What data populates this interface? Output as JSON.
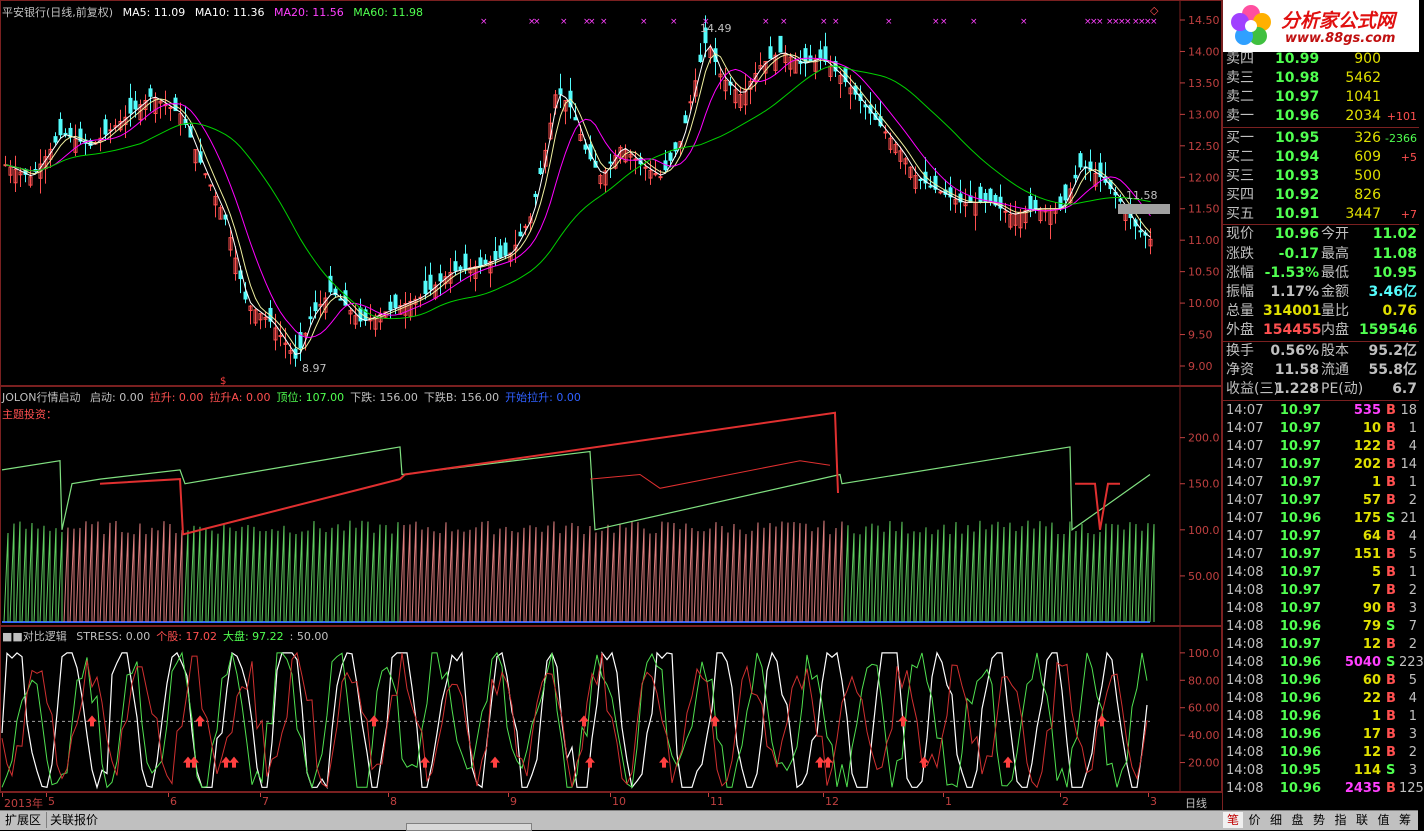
{
  "price_pane": {
    "title": "平安银行(日线,前复权)",
    "ma5": "MA5: 11.09",
    "ma10": "MA10: 11.36",
    "ma20": "MA20: 11.56",
    "ma60": "MA60: 11.98",
    "high_label": "14.49",
    "low_label": "8.97",
    "cursor_label": "11.58",
    "yticks": [
      "14.50",
      "14.00",
      "13.50",
      "13.00",
      "12.50",
      "12.00",
      "11.50",
      "11.00",
      "10.50",
      "10.00",
      "9.50",
      "9.00"
    ],
    "colors": {
      "up": "#ff5050",
      "down": "#54fcfc",
      "ma5": "#ffffff",
      "ma10": "#ffff00",
      "ma20": "#ff00ff",
      "ma60": "#00e000"
    }
  },
  "indicator1": {
    "name": "JOLON行情启动",
    "subtitle": "主题投资：",
    "items": [
      {
        "label": "启动: 0.00",
        "color": "#c0c0c0"
      },
      {
        "label": "拉升: 0.00",
        "color": "#ff5050"
      },
      {
        "label": "拉升A: 0.00",
        "color": "#ff5050"
      },
      {
        "label": "顶位: 107.00",
        "color": "#50ff50"
      },
      {
        "label": "下跌: 156.00",
        "color": "#c0c0c0"
      },
      {
        "label": "下跌B: 156.00",
        "color": "#c0c0c0"
      },
      {
        "label": "开始拉升: 0.00",
        "color": "#3060ff"
      }
    ],
    "yticks": [
      "200.0",
      "150.0",
      "100.0",
      "50.00"
    ]
  },
  "indicator2": {
    "name": "■■对比逻辑",
    "items": [
      {
        "label": "STRESS: 0.00",
        "color": "#c0c0c0"
      },
      {
        "label": "个股: 17.02",
        "color": "#ff5050"
      },
      {
        "label": "大盘: 97.22",
        "color": "#50ff50"
      },
      {
        "label": ": 50.00",
        "color": "#c0c0c0"
      }
    ],
    "yticks": [
      "100.0",
      "80.00",
      "60.00",
      "40.00",
      "20.00"
    ]
  },
  "date_axis": {
    "labels": [
      "2013年",
      "5",
      "6",
      "7",
      "8",
      "9",
      "10",
      "11",
      "12",
      "1",
      "2",
      "3"
    ],
    "period": "日线"
  },
  "order_book": {
    "sells": [
      {
        "label": "卖四",
        "price": "10.99",
        "vol": "900",
        "chg": ""
      },
      {
        "label": "卖三",
        "price": "10.98",
        "vol": "5462",
        "chg": ""
      },
      {
        "label": "卖二",
        "price": "10.97",
        "vol": "1041",
        "chg": ""
      },
      {
        "label": "卖一",
        "price": "10.96",
        "vol": "2034",
        "chg": "+101"
      }
    ],
    "buys": [
      {
        "label": "买一",
        "price": "10.95",
        "vol": "326",
        "chg": "-2366"
      },
      {
        "label": "买二",
        "price": "10.94",
        "vol": "609",
        "chg": "+5"
      },
      {
        "label": "买三",
        "price": "10.93",
        "vol": "500",
        "chg": ""
      },
      {
        "label": "买四",
        "price": "10.92",
        "vol": "826",
        "chg": ""
      },
      {
        "label": "买五",
        "price": "10.91",
        "vol": "3447",
        "chg": "+7"
      }
    ]
  },
  "stats": [
    {
      "l1": "现价",
      "v1": "10.96",
      "c1": "#50ff50",
      "l2": "今开",
      "v2": "11.02",
      "c2": "#50ff50"
    },
    {
      "l1": "涨跌",
      "v1": "-0.17",
      "c1": "#50ff50",
      "l2": "最高",
      "v2": "11.08",
      "c2": "#50ff50"
    },
    {
      "l1": "涨幅",
      "v1": "-1.53%",
      "c1": "#50ff50",
      "l2": "最低",
      "v2": "10.95",
      "c2": "#50ff50"
    },
    {
      "l1": "振幅",
      "v1": "1.17%",
      "c1": "#c0c0c0",
      "l2": "金额",
      "v2": "3.46亿",
      "c2": "#54fcfc"
    },
    {
      "l1": "总量",
      "v1": "314001",
      "c1": "#e0e000",
      "l2": "量比",
      "v2": "0.76",
      "c2": "#e0e000"
    },
    {
      "l1": "外盘",
      "v1": "154455",
      "c1": "#ff5050",
      "l2": "内盘",
      "v2": "159546",
      "c2": "#50ff50"
    },
    {
      "l1": "换手",
      "v1": "0.56%",
      "c1": "#c0c0c0",
      "l2": "股本",
      "v2": "95.2亿",
      "c2": "#c0c0c0"
    },
    {
      "l1": "净资",
      "v1": "11.58",
      "c1": "#c0c0c0",
      "l2": "流通",
      "v2": "55.8亿",
      "c2": "#c0c0c0"
    },
    {
      "l1": "收益(三)",
      "v1": "1.228",
      "c1": "#c0c0c0",
      "l2": "PE(动)",
      "v2": "6.7",
      "c2": "#c0c0c0"
    }
  ],
  "ticks": [
    {
      "t": "14:07",
      "p": "10.97",
      "v": "535",
      "vc": "#ff40ff",
      "s": "B",
      "n": "18"
    },
    {
      "t": "14:07",
      "p": "10.97",
      "v": "10",
      "vc": "#e0e000",
      "s": "B",
      "n": "1"
    },
    {
      "t": "14:07",
      "p": "10.97",
      "v": "122",
      "vc": "#e0e000",
      "s": "B",
      "n": "4"
    },
    {
      "t": "14:07",
      "p": "10.97",
      "v": "202",
      "vc": "#e0e000",
      "s": "B",
      "n": "14"
    },
    {
      "t": "14:07",
      "p": "10.97",
      "v": "1",
      "vc": "#e0e000",
      "s": "B",
      "n": "1"
    },
    {
      "t": "14:07",
      "p": "10.97",
      "v": "57",
      "vc": "#e0e000",
      "s": "B",
      "n": "2"
    },
    {
      "t": "14:07",
      "p": "10.96",
      "v": "175",
      "vc": "#e0e000",
      "s": "S",
      "n": "21"
    },
    {
      "t": "14:07",
      "p": "10.97",
      "v": "64",
      "vc": "#e0e000",
      "s": "B",
      "n": "4"
    },
    {
      "t": "14:07",
      "p": "10.97",
      "v": "151",
      "vc": "#e0e000",
      "s": "B",
      "n": "5"
    },
    {
      "t": "14:08",
      "p": "10.97",
      "v": "5",
      "vc": "#e0e000",
      "s": "B",
      "n": "1"
    },
    {
      "t": "14:08",
      "p": "10.97",
      "v": "7",
      "vc": "#e0e000",
      "s": "B",
      "n": "2"
    },
    {
      "t": "14:08",
      "p": "10.97",
      "v": "90",
      "vc": "#e0e000",
      "s": "B",
      "n": "3"
    },
    {
      "t": "14:08",
      "p": "10.96",
      "v": "79",
      "vc": "#e0e000",
      "s": "S",
      "n": "7"
    },
    {
      "t": "14:08",
      "p": "10.97",
      "v": "12",
      "vc": "#e0e000",
      "s": "B",
      "n": "2"
    },
    {
      "t": "14:08",
      "p": "10.96",
      "v": "5040",
      "vc": "#ff40ff",
      "s": "S",
      "n": "223"
    },
    {
      "t": "14:08",
      "p": "10.96",
      "v": "60",
      "vc": "#e0e000",
      "s": "B",
      "n": "5"
    },
    {
      "t": "14:08",
      "p": "10.96",
      "v": "22",
      "vc": "#e0e000",
      "s": "B",
      "n": "4"
    },
    {
      "t": "14:08",
      "p": "10.96",
      "v": "1",
      "vc": "#e0e000",
      "s": "B",
      "n": "1"
    },
    {
      "t": "14:08",
      "p": "10.96",
      "v": "17",
      "vc": "#e0e000",
      "s": "B",
      "n": "3"
    },
    {
      "t": "14:08",
      "p": "10.96",
      "v": "12",
      "vc": "#e0e000",
      "s": "B",
      "n": "2"
    },
    {
      "t": "14:08",
      "p": "10.95",
      "v": "114",
      "vc": "#e0e000",
      "s": "S",
      "n": "3"
    },
    {
      "t": "14:08",
      "p": "10.96",
      "v": "2435",
      "vc": "#ff40ff",
      "s": "B",
      "n": "125"
    }
  ],
  "logo": {
    "title": "分析家公式网",
    "url": "www.88gs.com"
  },
  "bottom_tabs": [
    "扩展区",
    "关联报价"
  ],
  "right_tabs": [
    "笔",
    "价",
    "细",
    "盘",
    "势",
    "指",
    "联",
    "值",
    "筹"
  ]
}
